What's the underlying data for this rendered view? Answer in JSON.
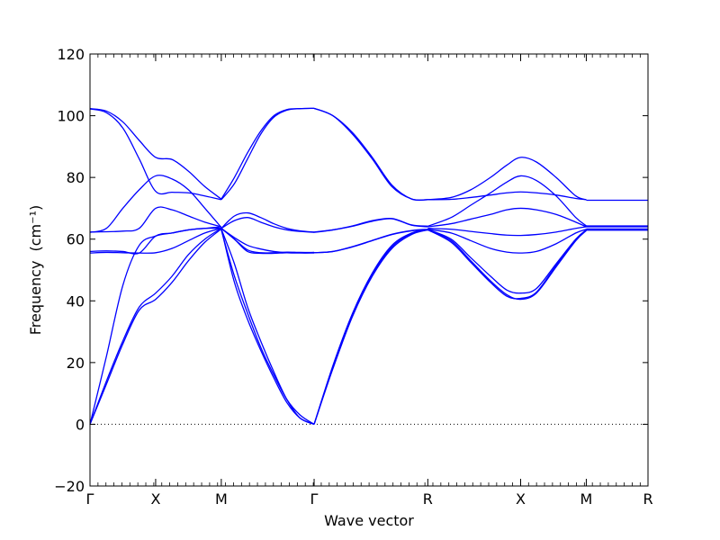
{
  "chart_data": {
    "type": "line",
    "xlabel": "Wave vector",
    "ylabel": "Frequency",
    "ylabel_unit": "(cm⁻¹)",
    "ylim": [
      -20,
      120
    ],
    "yticks": [
      -20,
      0,
      20,
      40,
      60,
      80,
      100,
      120
    ],
    "xlim": [
      0,
      8.5
    ],
    "high_symmetry_points": [
      {
        "label": "Γ",
        "x": 0
      },
      {
        "label": "X",
        "x": 1
      },
      {
        "label": "M",
        "x": 2
      },
      {
        "label": "Γ",
        "x": 3.414
      },
      {
        "label": "R",
        "x": 5.146
      },
      {
        "label": "X",
        "x": 6.56
      },
      {
        "label": "M",
        "x": 7.56
      },
      {
        "label": "R",
        "x": 8.5
      }
    ],
    "zero_line": true,
    "series": [
      {
        "x": [
          0,
          0.25,
          0.5,
          0.75,
          1,
          1.25,
          1.5,
          1.75,
          2
        ],
        "values": [
          0,
          13,
          26,
          37,
          40.5,
          46,
          53,
          59,
          63.3
        ]
      },
      {
        "x": [
          0,
          0.25,
          0.5,
          0.75,
          1,
          1.25,
          1.5,
          1.75,
          2
        ],
        "values": [
          0,
          14,
          27,
          38,
          42.5,
          48,
          55,
          60,
          63.5
        ]
      },
      {
        "x": [
          0,
          0.25,
          0.5,
          0.75,
          1,
          1.25,
          1.5,
          1.75,
          2
        ],
        "values": [
          0,
          22,
          45,
          58,
          61,
          62,
          63,
          63.5,
          64
        ]
      },
      {
        "x": [
          0,
          0.25,
          0.5,
          0.75,
          1,
          1.25,
          1.5,
          1.75,
          2
        ],
        "values": [
          55.5,
          55.7,
          55.6,
          55.5,
          55.6,
          57,
          59.5,
          62,
          63.5
        ]
      },
      {
        "x": [
          0,
          0.25,
          0.5,
          0.75,
          1,
          1.25,
          1.5,
          1.75,
          2
        ],
        "values": [
          56,
          56.2,
          56,
          55.5,
          61,
          62,
          63,
          63.5,
          63.5
        ]
      },
      {
        "x": [
          0,
          0.25,
          0.5,
          0.75,
          1,
          1.25,
          1.5,
          1.75,
          2
        ],
        "values": [
          62.3,
          62.4,
          62.6,
          63.5,
          70,
          69.5,
          67.5,
          65.5,
          64
        ]
      },
      {
        "x": [
          0,
          0.25,
          0.5,
          0.75,
          1,
          1.25,
          1.5,
          1.75,
          2
        ],
        "values": [
          62.2,
          63.5,
          70,
          76,
          80.5,
          79.5,
          76,
          70,
          63.8
        ]
      },
      {
        "x": [
          0,
          0.25,
          0.5,
          0.75,
          1,
          1.25,
          1.5,
          1.75,
          2
        ],
        "values": [
          102.2,
          101,
          96,
          86,
          75.5,
          75.2,
          75,
          74,
          72.8
        ]
      },
      {
        "x": [
          0,
          0.25,
          0.5,
          0.75,
          1,
          1.25,
          1.5,
          1.75,
          2
        ],
        "values": [
          102.3,
          101.5,
          98,
          92,
          86.5,
          85.8,
          82,
          77,
          73
        ]
      },
      {
        "x": [
          2,
          2.2,
          2.4,
          2.6,
          2.8,
          3,
          3.2,
          3.414
        ],
        "values": [
          73,
          80,
          88,
          95,
          100,
          102,
          102.3,
          102.4
        ]
      },
      {
        "x": [
          2,
          2.2,
          2.4,
          2.6,
          2.8,
          3,
          3.2,
          3.414
        ],
        "values": [
          72.8,
          78,
          86,
          94,
          99.5,
          101.8,
          102.3,
          102.4
        ]
      },
      {
        "x": [
          2,
          2.2,
          2.4,
          2.6,
          2.8,
          3,
          3.2,
          3.414
        ],
        "values": [
          63.5,
          67.5,
          68.5,
          67,
          65,
          63.5,
          62.7,
          62.3
        ]
      },
      {
        "x": [
          2,
          2.2,
          2.4,
          2.6,
          2.8,
          3,
          3.2,
          3.414
        ],
        "values": [
          63.5,
          66,
          67,
          65.5,
          64,
          63,
          62.5,
          62.2
        ]
      },
      {
        "x": [
          2,
          2.2,
          2.4,
          2.6,
          2.8,
          3,
          3.2,
          3.414
        ],
        "values": [
          63.5,
          60,
          56.5,
          55.6,
          55.6,
          55.8,
          55.7,
          55.7
        ]
      },
      {
        "x": [
          2,
          2.2,
          2.4,
          2.6,
          2.8,
          3,
          3.2,
          3.414
        ],
        "values": [
          63.5,
          60,
          56,
          55.4,
          55.4,
          55.6,
          55.6,
          55.6
        ]
      },
      {
        "x": [
          2,
          2.2,
          2.4,
          2.6,
          2.8,
          3,
          3.2,
          3.414
        ],
        "values": [
          63.5,
          60.5,
          58,
          56.8,
          56,
          55.6,
          55.5,
          55.5
        ]
      },
      {
        "x": [
          2,
          2.2,
          2.4,
          2.6,
          2.8,
          3,
          3.2,
          3.414
        ],
        "values": [
          63.3,
          52,
          38,
          27,
          17,
          8,
          2,
          0
        ]
      },
      {
        "x": [
          2,
          2.2,
          2.4,
          2.6,
          2.8,
          3,
          3.2,
          3.414
        ],
        "values": [
          63,
          48,
          36,
          25,
          16,
          8,
          3,
          0
        ]
      },
      {
        "x": [
          2,
          2.2,
          2.4,
          2.6,
          2.8,
          3,
          3.2,
          3.414
        ],
        "values": [
          63.3,
          46,
          34,
          24,
          15,
          7,
          2,
          0
        ]
      },
      {
        "x": [
          3.414,
          3.7,
          4,
          4.3,
          4.6,
          4.9,
          5.146
        ],
        "values": [
          102.4,
          100,
          94,
          86,
          77,
          73,
          72.8
        ]
      },
      {
        "x": [
          3.414,
          3.7,
          4,
          4.3,
          4.6,
          4.9,
          5.146
        ],
        "values": [
          102.4,
          100,
          94.5,
          86.5,
          77.5,
          73,
          72.8
        ]
      },
      {
        "x": [
          3.414,
          3.7,
          4,
          4.3,
          4.6,
          4.9,
          5.146
        ],
        "values": [
          62.3,
          63,
          64.2,
          65.8,
          66.6,
          64.5,
          64
        ]
      },
      {
        "x": [
          3.414,
          3.7,
          4,
          4.3,
          4.6,
          4.9,
          5.146
        ],
        "values": [
          62.2,
          63,
          64.3,
          66,
          66.7,
          64.6,
          64.2
        ]
      },
      {
        "x": [
          3.414,
          3.7,
          4,
          4.3,
          4.6,
          4.9,
          5.146
        ],
        "values": [
          55.6,
          56,
          57.5,
          59.5,
          61.5,
          62.7,
          63.1
        ]
      },
      {
        "x": [
          3.414,
          3.7,
          4,
          4.3,
          4.6,
          4.9,
          5.146
        ],
        "values": [
          55.6,
          56,
          57.6,
          59.6,
          61.6,
          62.8,
          63.2
        ]
      },
      {
        "x": [
          3.414,
          3.7,
          4,
          4.3,
          4.6,
          4.9,
          5.146
        ],
        "values": [
          0,
          18,
          35,
          48,
          57,
          61.5,
          63
        ]
      },
      {
        "x": [
          3.414,
          3.7,
          4,
          4.3,
          4.6,
          4.9,
          5.146
        ],
        "values": [
          0,
          19,
          36,
          49,
          58,
          62,
          63.1
        ]
      },
      {
        "x": [
          3.414,
          3.7,
          4,
          4.3,
          4.6,
          4.9,
          5.146
        ],
        "values": [
          0,
          18.5,
          35.5,
          48.5,
          57.5,
          61.8,
          63
        ]
      },
      {
        "x": [
          5.146,
          5.5,
          5.8,
          6.1,
          6.35,
          6.56,
          6.8,
          7.1,
          7.4,
          7.56
        ],
        "values": [
          72.8,
          73.5,
          76,
          80,
          84,
          86.5,
          85,
          80,
          74,
          72.8
        ]
      },
      {
        "x": [
          5.146,
          5.5,
          5.8,
          6.1,
          6.35,
          6.56,
          6.8,
          7.1,
          7.4,
          7.56
        ],
        "values": [
          72.8,
          72.9,
          73.5,
          74.3,
          75,
          75.3,
          75,
          74.3,
          73.2,
          72.8
        ]
      },
      {
        "x": [
          5.146,
          5.5,
          5.8,
          6.1,
          6.35,
          6.56,
          6.8,
          7.1,
          7.4,
          7.56
        ],
        "values": [
          64.2,
          67,
          71,
          75,
          78.5,
          80.5,
          79,
          74,
          67,
          64.3
        ]
      },
      {
        "x": [
          5.146,
          5.5,
          5.8,
          6.1,
          6.35,
          6.56,
          6.8,
          7.1,
          7.4,
          7.56
        ],
        "values": [
          64,
          65,
          66.5,
          68,
          69.5,
          70,
          69.5,
          68,
          65.5,
          64
        ]
      },
      {
        "x": [
          5.146,
          5.5,
          5.8,
          6.1,
          6.35,
          6.56,
          6.8,
          7.1,
          7.4,
          7.56
        ],
        "values": [
          63.5,
          63.2,
          62.5,
          61.8,
          61.3,
          61.2,
          61.5,
          62.3,
          63.5,
          64
        ]
      },
      {
        "x": [
          5.146,
          5.5,
          5.8,
          6.1,
          6.35,
          6.56,
          6.8,
          7.1,
          7.4,
          7.56
        ],
        "values": [
          63.2,
          62,
          59.5,
          57,
          55.8,
          55.5,
          56,
          58.5,
          62,
          63.2
        ]
      },
      {
        "x": [
          5.146,
          5.5,
          5.8,
          6.1,
          6.35,
          6.56,
          6.8,
          7.1,
          7.4,
          7.56
        ],
        "values": [
          63.1,
          60,
          54,
          48,
          43.5,
          42.5,
          44,
          52,
          60,
          63
        ]
      },
      {
        "x": [
          5.146,
          5.5,
          5.8,
          6.1,
          6.35,
          6.56,
          6.8,
          7.1,
          7.4,
          7.56
        ],
        "values": [
          63,
          59.5,
          53,
          46.5,
          42,
          40.5,
          42.5,
          51,
          59.5,
          62.8
        ]
      },
      {
        "x": [
          5.146,
          5.5,
          5.8,
          6.1,
          6.35,
          6.56,
          6.8,
          7.1,
          7.4,
          7.56
        ],
        "values": [
          63,
          59,
          52.5,
          46,
          41.5,
          40.8,
          42.8,
          51.5,
          59.8,
          62.9
        ]
      },
      {
        "x": [
          7.56,
          8.5
        ],
        "values": [
          72.6,
          72.6
        ]
      },
      {
        "x": [
          7.56,
          8.5
        ],
        "values": [
          64.3,
          64.3
        ]
      },
      {
        "x": [
          7.56,
          8.5
        ],
        "values": [
          64,
          64
        ]
      },
      {
        "x": [
          7.56,
          8.5
        ],
        "values": [
          63.3,
          63.3
        ]
      },
      {
        "x": [
          7.56,
          8.5
        ],
        "values": [
          63,
          63
        ]
      },
      {
        "x": [
          7.56,
          8.5
        ],
        "values": [
          62.9,
          62.9
        ]
      }
    ]
  }
}
